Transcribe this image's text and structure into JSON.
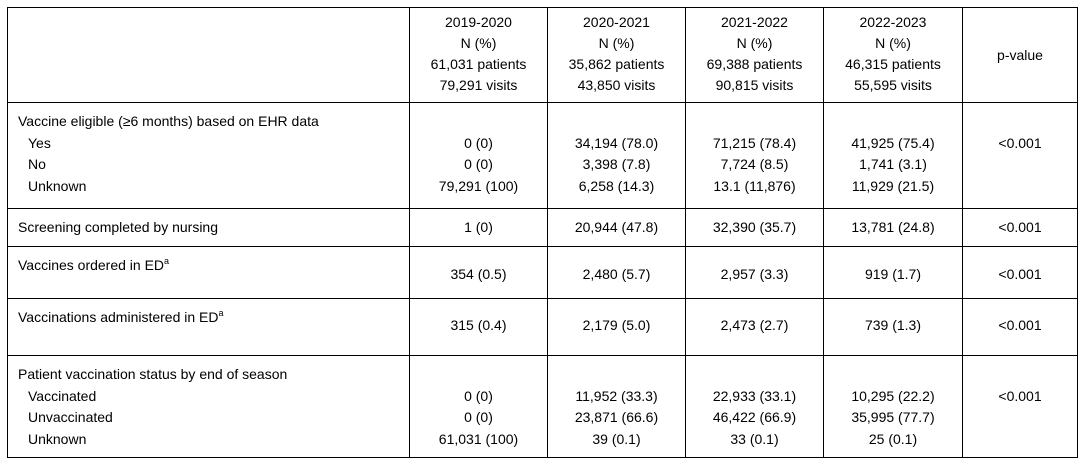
{
  "header": {
    "seasons": [
      {
        "season": "2019-2020",
        "stat": "N (%)",
        "patients": "61,031 patients",
        "visits": "79,291 visits"
      },
      {
        "season": "2020-2021",
        "stat": "N (%)",
        "patients": "35,862 patients",
        "visits": "43,850 visits"
      },
      {
        "season": "2021-2022",
        "stat": "N (%)",
        "patients": "69,388 patients",
        "visits": "90,815 visits"
      },
      {
        "season": "2022-2023",
        "stat": "N (%)",
        "patients": "46,315 patients",
        "visits": "55,595 visits"
      }
    ],
    "pvalue": "p-value"
  },
  "rows": {
    "eligible": {
      "label": "Vaccine eligible (≥6 months) based on EHR data",
      "sub": [
        {
          "label": "Yes",
          "values": [
            "0 (0)",
            "34,194 (78.0)",
            "71,215 (78.4)",
            "41,925 (75.4)"
          ]
        },
        {
          "label": "No",
          "values": [
            "0 (0)",
            "3,398 (7.8)",
            "7,724 (8.5)",
            "1,741 (3.1)"
          ]
        },
        {
          "label": "Unknown",
          "values": [
            "79,291 (100)",
            "6,258 (14.3)",
            "13.1 (11,876)",
            "11,929 (21.5)"
          ]
        }
      ],
      "pvalue": "<0.001"
    },
    "screening": {
      "label": "Screening completed by nursing",
      "values": [
        "1 (0)",
        "20,944 (47.8)",
        "32,390 (35.7)",
        "13,781 (24.8)"
      ],
      "pvalue": "<0.001"
    },
    "ordered": {
      "label": "Vaccines ordered in ED",
      "sup": "a",
      "values": [
        "354 (0.5)",
        "2,480 (5.7)",
        "2,957 (3.3)",
        "919 (1.7)"
      ],
      "pvalue": "<0.001"
    },
    "administered": {
      "label": "Vaccinations administered in ED",
      "sup": "a",
      "values": [
        "315 (0.4)",
        "2,179 (5.0)",
        "2,473 (2.7)",
        "739 (1.3)"
      ],
      "pvalue": "<0.001"
    },
    "status": {
      "label": "Patient vaccination status by end of season",
      "sub": [
        {
          "label": "Vaccinated",
          "values": [
            "0 (0)",
            "11,952 (33.3)",
            "22,933 (33.1)",
            "10,295 (22.2)"
          ]
        },
        {
          "label": "Unvaccinated",
          "values": [
            "0 (0)",
            "23,871 (66.6)",
            "46,422 (66.9)",
            "35,995 (77.7)"
          ]
        },
        {
          "label": "Unknown",
          "values": [
            "61,031 (100)",
            "39 (0.1)",
            "33 (0.1)",
            "25 (0.1)"
          ]
        }
      ],
      "pvalue": "<0.001"
    }
  }
}
